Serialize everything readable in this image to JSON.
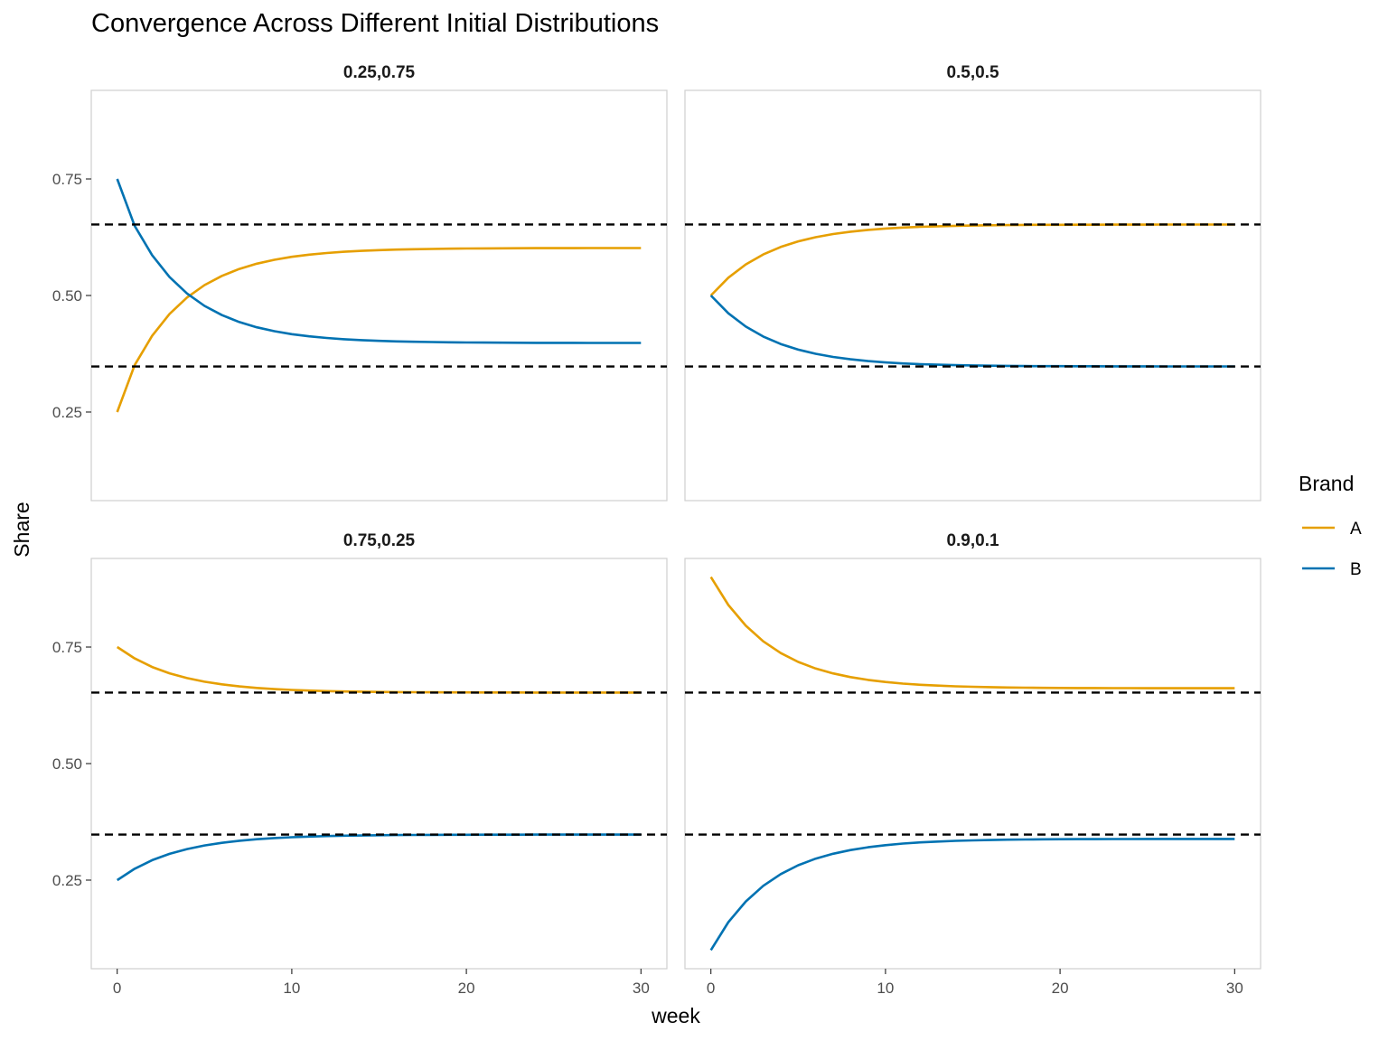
{
  "chart_data": {
    "type": "line",
    "title": "Convergence Across Different Initial Distributions",
    "xlabel": "week",
    "ylabel": "Share",
    "xlim": [
      0,
      30
    ],
    "ylim": [
      0.06,
      0.94
    ],
    "x_ticks": [
      0,
      10,
      20,
      30
    ],
    "y_ticks": [
      0.25,
      0.5,
      0.75
    ],
    "x_tick_labels": [
      "0",
      "10",
      "20",
      "30"
    ],
    "y_tick_labels": [
      "0.25",
      "0.50",
      "0.75"
    ],
    "grid": false,
    "legend": {
      "title": "Brand",
      "position": "right",
      "entries": [
        {
          "name": "A",
          "color": "#E69F00"
        },
        {
          "name": "B",
          "color": "#0072B2"
        }
      ]
    },
    "reference_lines": {
      "style": "dashed",
      "color": "#000000",
      "y": [
        0.6522,
        0.3478
      ]
    },
    "weeks": [
      0,
      1,
      2,
      3,
      4,
      5,
      6,
      7,
      8,
      9,
      10,
      11,
      12,
      13,
      14,
      15,
      16,
      17,
      18,
      19,
      20,
      21,
      22,
      23,
      24,
      25,
      26,
      27,
      28,
      29,
      30
    ],
    "panels": [
      {
        "label": "0.25,0.75",
        "series": [
          {
            "name": "A",
            "values": [
              0.25,
              0.3505,
              0.4133,
              0.4604,
              0.4957,
              0.5222,
              0.5421,
              0.557,
              0.5682,
              0.5766,
              0.5829,
              0.5876,
              0.5911,
              0.5938,
              0.5958,
              0.5973,
              0.5984,
              0.5993,
              0.5999,
              0.6004,
              0.6007,
              0.601,
              0.6012,
              0.6013,
              0.6015,
              0.6015,
              0.6016,
              0.6017,
              0.6017,
              0.6017,
              0.6018
            ]
          },
          {
            "name": "B",
            "values": [
              0.75,
              0.6495,
              0.5867,
              0.5396,
              0.5043,
              0.4778,
              0.4579,
              0.443,
              0.4318,
              0.4234,
              0.4171,
              0.4124,
              0.4089,
              0.4062,
              0.4042,
              0.4027,
              0.4016,
              0.4007,
              0.4001,
              0.3996,
              0.3993,
              0.399,
              0.3988,
              0.3987,
              0.3985,
              0.3985,
              0.3984,
              0.3983,
              0.3983,
              0.3983,
              0.3982
            ]
          }
        ]
      },
      {
        "label": "0.5,0.5",
        "series": [
          {
            "name": "A",
            "values": [
              0.5,
              0.5381,
              0.5666,
              0.588,
              0.6041,
              0.6161,
              0.6251,
              0.6319,
              0.6369,
              0.6407,
              0.6436,
              0.6457,
              0.6473,
              0.6485,
              0.6494,
              0.6501,
              0.6506,
              0.651,
              0.6513,
              0.6515,
              0.6516,
              0.6517,
              0.6518,
              0.6519,
              0.652,
              0.652,
              0.6521,
              0.6521,
              0.6521,
              0.6521,
              0.6521
            ]
          },
          {
            "name": "B",
            "values": [
              0.5,
              0.4619,
              0.4334,
              0.412,
              0.3959,
              0.3839,
              0.3749,
              0.3681,
              0.3631,
              0.3593,
              0.3564,
              0.3543,
              0.3527,
              0.3515,
              0.3506,
              0.3499,
              0.3494,
              0.349,
              0.3487,
              0.3485,
              0.3484,
              0.3483,
              0.3482,
              0.3481,
              0.348,
              0.348,
              0.3479,
              0.3479,
              0.3479,
              0.3479,
              0.3479
            ]
          }
        ]
      },
      {
        "label": "0.75,0.25",
        "series": [
          {
            "name": "A",
            "values": [
              0.75,
              0.7256,
              0.7073,
              0.6936,
              0.6834,
              0.6757,
              0.6699,
              0.6655,
              0.6623,
              0.6598,
              0.658,
              0.6566,
              0.6555,
              0.6547,
              0.6542,
              0.6537,
              0.6534,
              0.6531,
              0.6529,
              0.6528,
              0.6527,
              0.6526,
              0.6525,
              0.6525,
              0.6524,
              0.6524,
              0.6524,
              0.6523,
              0.6523,
              0.6523,
              0.6523
            ]
          },
          {
            "name": "B",
            "values": [
              0.25,
              0.2744,
              0.2927,
              0.3064,
              0.3166,
              0.3243,
              0.3301,
              0.3345,
              0.3377,
              0.3402,
              0.342,
              0.3434,
              0.3445,
              0.3453,
              0.3458,
              0.3463,
              0.3466,
              0.3469,
              0.3471,
              0.3472,
              0.3473,
              0.3474,
              0.3475,
              0.3475,
              0.3476,
              0.3476,
              0.3476,
              0.3477,
              0.3477,
              0.3477,
              0.3477
            ]
          }
        ]
      },
      {
        "label": "0.9,0.1",
        "series": [
          {
            "name": "A",
            "values": [
              0.9,
              0.8402,
              0.7957,
              0.7622,
              0.737,
              0.7181,
              0.704,
              0.6934,
              0.6855,
              0.6795,
              0.675,
              0.6716,
              0.6691,
              0.6672,
              0.6658,
              0.6647,
              0.6639,
              0.6633,
              0.6629,
              0.6625,
              0.6623,
              0.6621,
              0.662,
              0.6619,
              0.6618,
              0.6617,
              0.6617,
              0.6617,
              0.6616,
              0.6616,
              0.6616
            ]
          },
          {
            "name": "B",
            "values": [
              0.1,
              0.1598,
              0.2043,
              0.2378,
              0.263,
              0.2819,
              0.296,
              0.3066,
              0.3145,
              0.3205,
              0.325,
              0.3284,
              0.3309,
              0.3328,
              0.3342,
              0.3353,
              0.3361,
              0.3367,
              0.3371,
              0.3375,
              0.3377,
              0.3379,
              0.338,
              0.3381,
              0.3382,
              0.3383,
              0.3383,
              0.3383,
              0.3384,
              0.3384,
              0.3384
            ]
          }
        ]
      }
    ]
  }
}
